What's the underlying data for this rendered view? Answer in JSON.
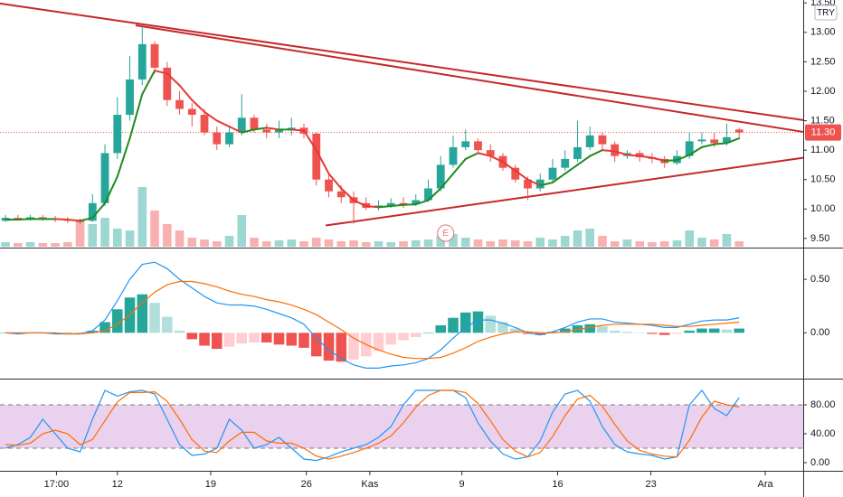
{
  "chart_data": [
    {
      "type": "candlestick",
      "currency": "TRY",
      "xlim": [
        -0.44,
        64.15
      ],
      "ylim": [
        9.36,
        13.55
      ],
      "yticks": [
        {
          "value": 13.5,
          "label": "13.50"
        },
        {
          "value": 13,
          "label": "13.00"
        },
        {
          "value": 12.5,
          "label": "12.50"
        },
        {
          "value": 12,
          "label": "12.00"
        },
        {
          "value": 11.5,
          "label": "11.50"
        },
        {
          "value": 11,
          "label": "11.00"
        },
        {
          "value": 10.5,
          "label": "10.50"
        },
        {
          "value": 10,
          "label": "10.00"
        },
        {
          "value": 9.5,
          "label": "9.50"
        }
      ],
      "up_color": "#26a69a",
      "down_color": "#ef5350",
      "open": [
        9.8,
        9.85,
        9.83,
        9.86,
        9.84,
        9.82,
        9.8,
        9.8,
        10.1,
        10.95,
        11.6,
        12.2,
        12.8,
        12.4,
        11.85,
        11.7,
        11.6,
        11.3,
        11.1,
        11.3,
        11.55,
        11.35,
        11.3,
        11.35,
        11.38,
        11.28,
        10.5,
        10.3,
        10.2,
        10.1,
        10.02,
        10.06,
        10.1,
        10.08,
        10.15,
        10.35,
        10.75,
        11.05,
        11.15,
        11.0,
        10.9,
        10.7,
        10.5,
        10.35,
        10.5,
        10.7,
        10.85,
        11.05,
        11.25,
        11.1,
        10.9,
        10.95,
        10.88,
        10.85,
        10.78,
        10.9,
        11.15,
        11.18,
        11.12,
        11.35
      ],
      "high": [
        9.9,
        9.9,
        9.9,
        9.9,
        9.88,
        9.86,
        9.84,
        10.25,
        11.1,
        11.9,
        12.6,
        13.1,
        12.85,
        12.5,
        12.0,
        11.8,
        11.7,
        11.4,
        11.4,
        11.95,
        11.6,
        11.45,
        11.5,
        11.55,
        11.45,
        11.3,
        10.6,
        10.4,
        10.3,
        10.2,
        10.15,
        10.18,
        10.2,
        10.25,
        10.5,
        10.9,
        11.25,
        11.35,
        11.2,
        11.1,
        10.95,
        10.75,
        10.55,
        10.6,
        10.85,
        11.0,
        11.5,
        11.4,
        11.3,
        11.15,
        11.0,
        11.0,
        10.95,
        10.9,
        11.0,
        11.3,
        11.3,
        11.3,
        11.45,
        11.38
      ],
      "low": [
        9.78,
        9.8,
        9.8,
        9.8,
        9.78,
        9.76,
        9.74,
        9.78,
        10.05,
        10.85,
        11.5,
        12.1,
        12.3,
        11.75,
        11.6,
        11.4,
        11.25,
        11.0,
        11.05,
        11.25,
        11.3,
        11.2,
        11.2,
        11.25,
        11.2,
        10.4,
        10.2,
        10.1,
        9.75,
        9.98,
        9.98,
        10.02,
        10.02,
        10.05,
        10.12,
        10.3,
        10.7,
        11.0,
        10.95,
        10.8,
        10.65,
        10.45,
        10.15,
        10.3,
        10.45,
        10.65,
        10.8,
        11.0,
        11.0,
        10.8,
        10.85,
        10.8,
        10.78,
        10.7,
        10.75,
        10.85,
        11.1,
        11.05,
        11.08,
        11.22
      ],
      "close": [
        9.85,
        9.83,
        9.86,
        9.84,
        9.82,
        9.8,
        9.78,
        10.1,
        10.95,
        11.6,
        12.2,
        12.8,
        12.4,
        11.85,
        11.7,
        11.6,
        11.3,
        11.1,
        11.3,
        11.55,
        11.35,
        11.3,
        11.35,
        11.38,
        11.28,
        10.5,
        10.3,
        10.2,
        10.1,
        10.02,
        10.06,
        10.1,
        10.08,
        10.15,
        10.35,
        10.75,
        11.05,
        11.15,
        11.0,
        10.9,
        10.7,
        10.5,
        10.35,
        10.5,
        10.7,
        10.85,
        11.05,
        11.25,
        11.1,
        10.9,
        10.95,
        10.88,
        10.85,
        10.78,
        10.9,
        11.15,
        11.18,
        11.12,
        11.22,
        11.3
      ],
      "volume": [
        5,
        4,
        5,
        4,
        4,
        5,
        30,
        25,
        32,
        20,
        18,
        66,
        40,
        25,
        18,
        10,
        8,
        6,
        12,
        35,
        10,
        6,
        7,
        8,
        6,
        10,
        8,
        6,
        7,
        5,
        6,
        5,
        6,
        7,
        8,
        12,
        14,
        10,
        8,
        6,
        8,
        7,
        6,
        10,
        8,
        12,
        18,
        20,
        12,
        6,
        8,
        6,
        5,
        6,
        7,
        18,
        10,
        8,
        14,
        6
      ],
      "ma": [
        9.82,
        9.82,
        9.83,
        9.83,
        9.83,
        9.82,
        9.8,
        9.85,
        10.1,
        10.55,
        11.2,
        11.95,
        12.35,
        12.3,
        12.1,
        11.85,
        11.65,
        11.5,
        11.4,
        11.3,
        11.35,
        11.38,
        11.35,
        11.35,
        11.33,
        11.0,
        10.6,
        10.35,
        10.15,
        10.05,
        10.03,
        10.05,
        10.07,
        10.08,
        10.15,
        10.35,
        10.6,
        10.85,
        10.95,
        10.9,
        10.8,
        10.65,
        10.5,
        10.4,
        10.45,
        10.6,
        10.75,
        10.9,
        11.0,
        10.98,
        10.92,
        10.9,
        10.87,
        10.82,
        10.83,
        10.92,
        11.05,
        11.1,
        11.12,
        11.2
      ],
      "ma_up_color": "#1e8c1e",
      "ma_down_color": "#e53935",
      "trendlines": [
        {
          "x": [
            -0.44,
            64.15
          ],
          "y": [
            13.49,
            11.51
          ],
          "color": "#c62828"
        },
        {
          "x": [
            10.47,
            64.15
          ],
          "y": [
            13.12,
            11.31
          ],
          "color": "#c62828"
        },
        {
          "x": [
            25.75,
            64.15
          ],
          "y": [
            9.72,
            10.87
          ],
          "color": "#c62828"
        }
      ],
      "last_price": {
        "value": 11.3,
        "label": "11.30"
      },
      "events": [
        {
          "x": 35.4,
          "label": "E"
        }
      ]
    },
    {
      "type": "macd",
      "xlim": [
        -0.44,
        64.15
      ],
      "ylim": [
        -0.42,
        0.78
      ],
      "yticks": [
        {
          "value": 0.5,
          "label": "0.50"
        },
        {
          "value": 0,
          "label": "0.00"
        }
      ],
      "macd": [
        0,
        -0.01,
        0,
        0,
        -0.01,
        -0.01,
        -0.01,
        0.02,
        0.12,
        0.3,
        0.5,
        0.64,
        0.66,
        0.6,
        0.5,
        0.42,
        0.34,
        0.28,
        0.26,
        0.26,
        0.25,
        0.22,
        0.18,
        0.14,
        0.08,
        -0.05,
        -0.16,
        -0.24,
        -0.3,
        -0.33,
        -0.33,
        -0.31,
        -0.3,
        -0.28,
        -0.24,
        -0.16,
        -0.05,
        0.05,
        0.12,
        0.12,
        0.09,
        0.05,
        0.0,
        -0.02,
        0.01,
        0.05,
        0.1,
        0.13,
        0.13,
        0.1,
        0.09,
        0.08,
        0.07,
        0.05,
        0.05,
        0.08,
        0.11,
        0.12,
        0.12,
        0.14
      ],
      "signal": [
        0,
        0,
        0,
        0,
        0,
        -0.01,
        -0.01,
        0,
        0.02,
        0.08,
        0.17,
        0.28,
        0.38,
        0.45,
        0.48,
        0.48,
        0.46,
        0.43,
        0.39,
        0.36,
        0.34,
        0.31,
        0.29,
        0.26,
        0.22,
        0.17,
        0.1,
        0.03,
        -0.05,
        -0.11,
        -0.16,
        -0.2,
        -0.23,
        -0.24,
        -0.24,
        -0.23,
        -0.19,
        -0.14,
        -0.08,
        -0.04,
        -0.01,
        0.01,
        0.01,
        0.0,
        0.0,
        0.01,
        0.03,
        0.05,
        0.07,
        0.08,
        0.08,
        0.08,
        0.08,
        0.07,
        0.06,
        0.06,
        0.07,
        0.08,
        0.09,
        0.1
      ],
      "histogram": [
        0,
        -0.01,
        0,
        0,
        -0.01,
        0,
        0,
        0.02,
        0.1,
        0.22,
        0.33,
        0.36,
        0.28,
        0.15,
        0.02,
        -0.06,
        -0.12,
        -0.15,
        -0.13,
        -0.1,
        -0.09,
        -0.09,
        -0.11,
        -0.12,
        -0.14,
        -0.22,
        -0.26,
        -0.27,
        -0.25,
        -0.22,
        -0.17,
        -0.11,
        -0.07,
        -0.04,
        0,
        0.07,
        0.14,
        0.19,
        0.2,
        0.16,
        0.1,
        0.04,
        -0.01,
        -0.02,
        0.01,
        0.04,
        0.07,
        0.08,
        0.06,
        0.02,
        0.01,
        0,
        -0.01,
        -0.02,
        -0.01,
        0.02,
        0.04,
        0.04,
        0.03,
        0.04
      ],
      "macd_color": "#2196f3",
      "signal_color": "#ff6d00"
    },
    {
      "type": "stochastic",
      "xlim": [
        -0.44,
        64.15
      ],
      "ylim": [
        -10,
        113.75
      ],
      "yticks": [
        {
          "value": 80,
          "label": "80.00"
        },
        {
          "value": 40,
          "label": "40.00"
        },
        {
          "value": 0,
          "label": "0.00"
        }
      ],
      "bands": [
        20,
        80
      ],
      "band_color": "#e1bee7",
      "k": [
        20,
        25,
        35,
        60,
        40,
        20,
        15,
        60,
        100,
        92,
        98,
        100,
        95,
        60,
        25,
        10,
        12,
        20,
        60,
        45,
        20,
        25,
        35,
        20,
        5,
        3,
        8,
        15,
        20,
        25,
        35,
        50,
        80,
        100,
        100,
        100,
        100,
        90,
        55,
        30,
        12,
        5,
        8,
        30,
        70,
        95,
        100,
        85,
        50,
        25,
        15,
        12,
        10,
        5,
        8,
        80,
        100,
        75,
        65,
        90
      ],
      "d": [
        25,
        24,
        27,
        40,
        45,
        40,
        25,
        32,
        58,
        84,
        97,
        97,
        98,
        85,
        60,
        32,
        16,
        14,
        30,
        42,
        42,
        30,
        27,
        27,
        20,
        9,
        5,
        9,
        14,
        20,
        27,
        37,
        55,
        77,
        93,
        100,
        100,
        97,
        82,
        58,
        32,
        16,
        8,
        14,
        36,
        65,
        88,
        93,
        78,
        53,
        30,
        17,
        12,
        9,
        8,
        31,
        63,
        85,
        80,
        77
      ],
      "k_color": "#2196f3",
      "d_color": "#ff6d00",
      "xticks": [
        {
          "value": 4.1,
          "label": "17:00"
        },
        {
          "value": 9,
          "label": "12"
        },
        {
          "value": 16.5,
          "label": "19"
        },
        {
          "value": 24.2,
          "label": "26"
        },
        {
          "value": 29.3,
          "label": "Kas"
        },
        {
          "value": 36.7,
          "label": "9"
        },
        {
          "value": 44.4,
          "label": "16"
        },
        {
          "value": 51.9,
          "label": "23"
        },
        {
          "value": 61.1,
          "label": "Ara"
        }
      ]
    }
  ]
}
